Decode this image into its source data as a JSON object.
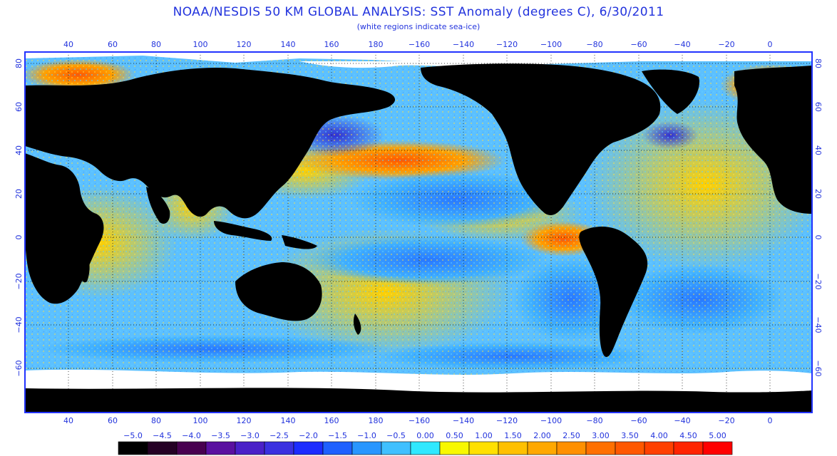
{
  "title": "NOAA/NESDIS 50 KM GLOBAL ANALYSIS: SST Anomaly (degrees C), 6/30/2011",
  "subtitle": "(white regions indicate sea-ice)",
  "map": {
    "longitude_ticks": [
      "40",
      "60",
      "80",
      "100",
      "120",
      "140",
      "160",
      "180",
      "−160",
      "−140",
      "−120",
      "−100",
      "−80",
      "−60",
      "−40",
      "−20",
      "0"
    ],
    "latitude_ticks": [
      "80",
      "60",
      "40",
      "20",
      "0",
      "−20",
      "−40",
      "−60"
    ],
    "land_color": "#000000",
    "sea_ice_color": "#ffffff",
    "frame_color": "#2233ff",
    "grid_style": "dotted"
  },
  "legend": {
    "labels": [
      "−5.0",
      "−4.5",
      "−4.0",
      "−3.5",
      "−3.0",
      "−2.5",
      "−2.0",
      "−1.5",
      "−1.0",
      "−0.5",
      "0.00",
      "0.50",
      "1.00",
      "1.50",
      "2.00",
      "2.50",
      "3.00",
      "3.50",
      "4.00",
      "4.50",
      "5.00"
    ],
    "colors": [
      "#000000",
      "#240024",
      "#480050",
      "#5a10a0",
      "#4a20c8",
      "#3a30e0",
      "#1c2cff",
      "#1e60ff",
      "#2896ff",
      "#40c0ff",
      "#30e8ff",
      "#f8f800",
      "#ffe000",
      "#ffc000",
      "#ffa800",
      "#ff9000",
      "#ff7000",
      "#ff5800",
      "#ff4000",
      "#ff2400",
      "#ff0000"
    ]
  }
}
